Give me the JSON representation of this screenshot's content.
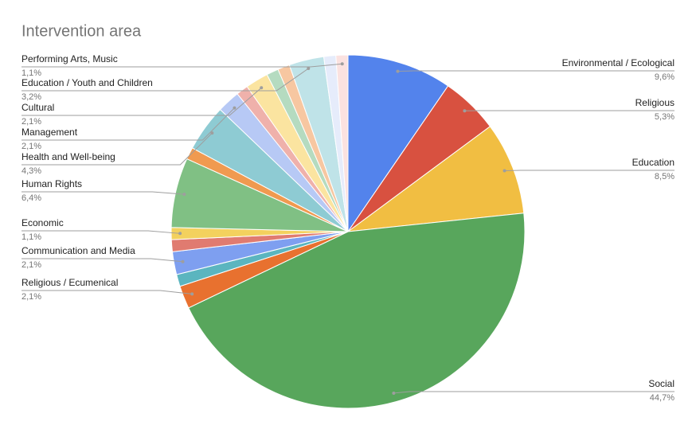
{
  "chart_data": {
    "type": "pie",
    "title": "Intervention area",
    "categories": [
      "Environmental / Ecological",
      "Religious",
      "Education",
      "Social",
      "Religious / Ecumenical",
      null,
      "Communication and Media",
      null,
      "Economic",
      "Human Rights",
      null,
      "Health and Well-being",
      "Management",
      null,
      "Cultural",
      null,
      null,
      "Education / Youth and Children",
      null,
      "Performing Arts, Music"
    ],
    "values": [
      9.6,
      5.3,
      8.5,
      44.7,
      2.1,
      1.1,
      2.1,
      1.1,
      1.1,
      6.4,
      1.1,
      4.3,
      2.1,
      1.1,
      2.1,
      1.1,
      1.1,
      3.2,
      1.1,
      1.1
    ],
    "value_labels": [
      "9,6%",
      "5,3%",
      "8,5%",
      "44,7%",
      "2,1%",
      null,
      "2,1%",
      null,
      "1,1%",
      "6,4%",
      null,
      "4,3%",
      "2,1%",
      null,
      "2,1%",
      null,
      null,
      "3,2%",
      null,
      "1,1%"
    ],
    "colors": [
      "#5383ec",
      "#d85140",
      "#f1be42",
      "#58a65c",
      "#e8712f",
      "#5bb5bf",
      "#7e9ff0",
      "#e07b70",
      "#f3d15e",
      "#80c084",
      "#f09a50",
      "#8ecbd3",
      "#b7c9f5",
      "#efb1ab",
      "#fbe4a0",
      "#b5dbc0",
      "#f7c7a1",
      "#bfe3e8",
      "#e6ecfb",
      "#fbe2e0"
    ]
  }
}
